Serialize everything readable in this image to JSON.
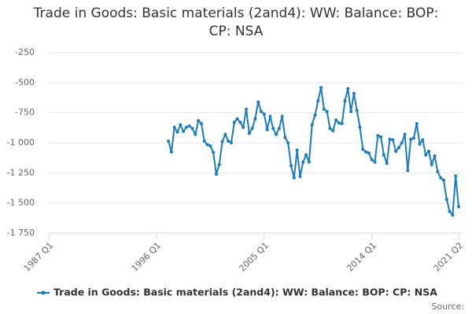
{
  "chart_data": {
    "type": "line",
    "title": "Trade in Goods: Basic materials (2and4): WW: Balance: BOP: CP: NSA",
    "source": "Source:",
    "categories": [
      "1987 Q1",
      null,
      null,
      null,
      null,
      null,
      null,
      null,
      null,
      null,
      null,
      null,
      null,
      null,
      null,
      null,
      null,
      null,
      null,
      null,
      null,
      null,
      null,
      null,
      null,
      null,
      null,
      null,
      null,
      null,
      null,
      null,
      null,
      null,
      null,
      null,
      "1996 Q1",
      null,
      null,
      null,
      null,
      null,
      null,
      null,
      null,
      null,
      null,
      null,
      null,
      null,
      null,
      null,
      null,
      null,
      null,
      null,
      null,
      null,
      null,
      null,
      null,
      null,
      null,
      null,
      null,
      null,
      null,
      null,
      null,
      null,
      null,
      null,
      "2005 Q1",
      null,
      null,
      null,
      null,
      null,
      null,
      null,
      null,
      null,
      null,
      null,
      null,
      null,
      null,
      null,
      null,
      null,
      null,
      null,
      null,
      null,
      null,
      null,
      null,
      null,
      null,
      null,
      null,
      null,
      null,
      null,
      null,
      null,
      null,
      null,
      "2014 Q1",
      null,
      null,
      null,
      null,
      null,
      null,
      null,
      null,
      null,
      null,
      null,
      null,
      null,
      null,
      null,
      null,
      null,
      null,
      null,
      null,
      null,
      null,
      null,
      null,
      null,
      null,
      null,
      null,
      "2021 Q2"
    ],
    "series": [
      {
        "name": "Trade in Goods: Basic materials (2and4): WW: Balance: BOP: CP: NSA",
        "color": "#1a7bbf",
        "values": [
          null,
          null,
          null,
          null,
          null,
          null,
          null,
          null,
          null,
          null,
          null,
          null,
          null,
          null,
          null,
          null,
          null,
          null,
          null,
          null,
          null,
          null,
          null,
          null,
          null,
          null,
          null,
          null,
          null,
          null,
          null,
          null,
          null,
          null,
          null,
          null,
          null,
          null,
          null,
          null,
          -985,
          -1075,
          -870,
          -910,
          -850,
          -905,
          -870,
          -860,
          -880,
          -930,
          -815,
          -840,
          -985,
          -1015,
          -1025,
          -1080,
          -1260,
          -1180,
          -990,
          -930,
          -985,
          -1000,
          -830,
          -800,
          -830,
          -870,
          -720,
          -920,
          -880,
          -800,
          -660,
          -740,
          -760,
          -890,
          -780,
          -880,
          -930,
          -880,
          -780,
          -955,
          -1000,
          -1190,
          -1290,
          -1060,
          -1280,
          -1160,
          -1100,
          -1160,
          -850,
          -770,
          -650,
          -540,
          -720,
          -740,
          -880,
          -900,
          -810,
          -835,
          -840,
          -650,
          -550,
          -740,
          -590,
          -730,
          -870,
          -1055,
          -1075,
          -1085,
          -1140,
          -1160,
          -940,
          -950,
          -1100,
          -1170,
          -970,
          -975,
          -1070,
          -1040,
          -1000,
          -930,
          -1230,
          -970,
          -960,
          -840,
          -1010,
          -975,
          -1100,
          -1070,
          -1180,
          -1110,
          -1240,
          -1290,
          -1310,
          -1470,
          -1570,
          -1600,
          -1275,
          -1530
        ]
      }
    ],
    "ylim": [
      -1750,
      -250
    ],
    "yticks": [
      -250,
      -500,
      -750,
      {
        "value": -1000,
        "label": "-1 000"
      },
      {
        "value": -1250,
        "label": "-1 250"
      },
      {
        "value": -1500,
        "label": "-1 500"
      },
      {
        "value": -1750,
        "label": "-1 750"
      }
    ],
    "grid": true
  }
}
